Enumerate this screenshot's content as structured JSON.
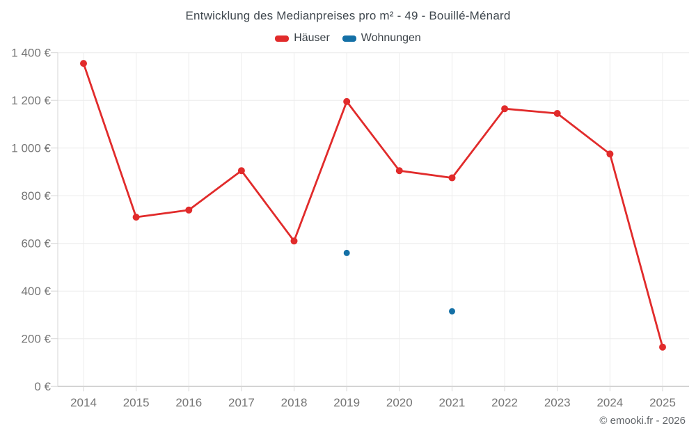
{
  "title": "Entwicklung des Medianpreises pro m² - 49 - Bouillé-Ménard",
  "legend": [
    {
      "label": "Häuser",
      "color": "#e12b2b"
    },
    {
      "label": "Wohnungen",
      "color": "#1470a6"
    }
  ],
  "attribution": "© emooki.fr - 2026",
  "chart_data": {
    "type": "line",
    "title": "Entwicklung des Medianpreises pro m² - 49 - Bouillé-Ménard",
    "xlabel": "",
    "ylabel": "",
    "categories": [
      "2014",
      "2015",
      "2016",
      "2017",
      "2018",
      "2019",
      "2020",
      "2021",
      "2022",
      "2023",
      "2024",
      "2025"
    ],
    "series": [
      {
        "name": "Häuser",
        "color": "#e12b2b",
        "marker_radius": 5,
        "values": [
          1355,
          710,
          740,
          905,
          610,
          1195,
          905,
          875,
          1165,
          1145,
          975,
          165
        ]
      },
      {
        "name": "Wohnungen",
        "color": "#1470a6",
        "marker_radius": 4.5,
        "values": [
          null,
          null,
          null,
          null,
          null,
          560,
          null,
          315,
          null,
          null,
          null,
          null
        ]
      }
    ],
    "ylim": [
      0,
      1400
    ],
    "y_ticks": [
      {
        "value": 0,
        "label": "0 €"
      },
      {
        "value": 200,
        "label": "200 €"
      },
      {
        "value": 400,
        "label": "400 €"
      },
      {
        "value": 600,
        "label": "600 €"
      },
      {
        "value": 800,
        "label": "800 €"
      },
      {
        "value": 1000,
        "label": "1 000 €"
      },
      {
        "value": 1200,
        "label": "1 200 €"
      },
      {
        "value": 1400,
        "label": "1 400 €"
      }
    ],
    "grid": true,
    "legend_position": "top"
  }
}
